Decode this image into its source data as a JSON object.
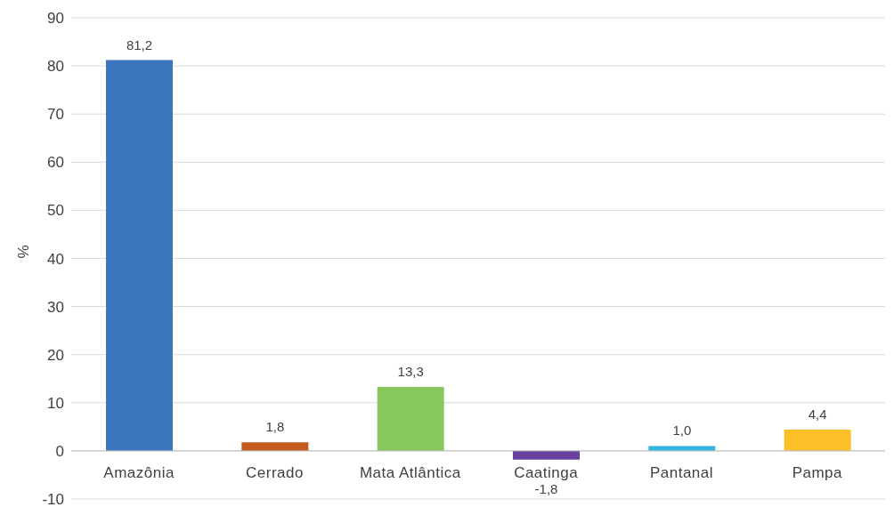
{
  "chart_data": {
    "type": "bar",
    "ylabel": "%",
    "categories": [
      "Amazônia",
      "Cerrado",
      "Mata Atlântica",
      "Caatinga",
      "Pantanal",
      "Pampa"
    ],
    "values": [
      81.2,
      1.8,
      13.3,
      -1.8,
      1.0,
      4.4
    ],
    "colors": [
      "#3b75bd",
      "#c55a1e",
      "#88c65e",
      "#6a3fa0",
      "#33b4e0",
      "#fbbf28"
    ],
    "value_labels": [
      "81,2",
      "1,8",
      "13,3",
      "-1,8",
      "1,0",
      "4,4"
    ],
    "ylim": [
      -10,
      90
    ],
    "yticks": [
      -10,
      0,
      10,
      20,
      30,
      40,
      50,
      60,
      70,
      80,
      90
    ],
    "grid": "y"
  }
}
